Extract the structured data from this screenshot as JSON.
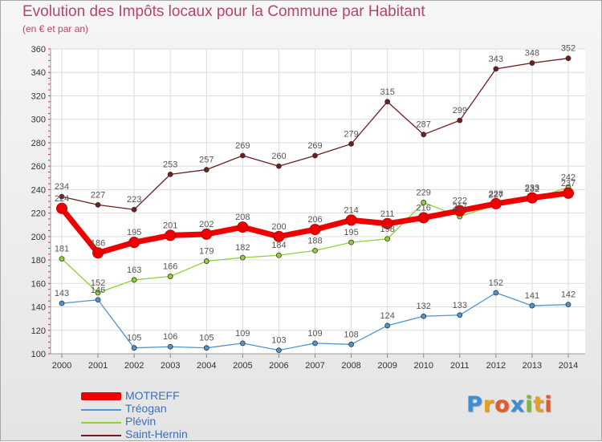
{
  "title": "Evolution des Impôts locaux pour la Commune par Habitant",
  "subtitle": "(en € et par an)",
  "logo": {
    "text": "Proxiti",
    "letters": [
      "P",
      "r",
      "o",
      "x",
      "i",
      "t",
      "i"
    ],
    "colors": [
      "#3a8fd8",
      "#e8a020",
      "#e05a2a",
      "#3a8fd8",
      "#7ab83a",
      "#e8a020",
      "#e05a2a"
    ]
  },
  "chart_data": {
    "type": "line",
    "title": "Evolution des Impôts locaux pour la Commune par Habitant",
    "subtitle": "(en € et par an)",
    "categories": [
      "2000",
      "2001",
      "2002",
      "2003",
      "2004",
      "2005",
      "2006",
      "2007",
      "2008",
      "2009",
      "2010",
      "2011",
      "2012",
      "2013",
      "2014"
    ],
    "ylim": [
      100,
      360
    ],
    "yticks": [
      100,
      120,
      140,
      160,
      180,
      200,
      220,
      240,
      260,
      280,
      300,
      320,
      340,
      360
    ],
    "grid": true,
    "legend_position": "bottom-left",
    "series": [
      {
        "name": "MOTREFF",
        "color": "#ee0000",
        "values": [
          224,
          186,
          195,
          201,
          202,
          208,
          200,
          206,
          214,
          211,
          216,
          222,
          228,
          233,
          237
        ],
        "labels": [
          "224",
          "186",
          "195",
          "201",
          "202",
          "208",
          "200",
          "206",
          "214",
          "211",
          "216",
          "222",
          "228",
          "233",
          "237"
        ]
      },
      {
        "name": "Tréogan",
        "color": "#4f95cf",
        "values": [
          143,
          146,
          105,
          106,
          105,
          109,
          103,
          109,
          108,
          124,
          132,
          133,
          152,
          141,
          142
        ],
        "labels": [
          "143",
          "146",
          "105",
          "106",
          "105",
          "109",
          "103",
          "109",
          "108",
          "124",
          "132",
          "133",
          "152",
          "141",
          "142"
        ]
      },
      {
        "name": "Plévin",
        "color": "#8fd13a",
        "values": [
          181,
          152,
          163,
          166,
          179,
          182,
          184,
          188,
          195,
          198,
          229,
          217,
          227,
          232,
          242
        ],
        "labels": [
          "181",
          "152",
          "163",
          "166",
          "179",
          "182",
          "184",
          "188",
          "195",
          "198",
          "229",
          "217",
          "227",
          "232",
          "242"
        ]
      },
      {
        "name": "Saint-Hernin",
        "color": "#6e1d1d",
        "values": [
          234,
          227,
          223,
          253,
          257,
          269,
          260,
          269,
          279,
          315,
          287,
          299,
          343,
          348,
          352
        ],
        "labels": [
          "234",
          "227",
          "223",
          "253",
          "257",
          "269",
          "260",
          "269",
          "279",
          "315",
          "287",
          "299",
          "343",
          "348",
          "352"
        ]
      }
    ]
  }
}
